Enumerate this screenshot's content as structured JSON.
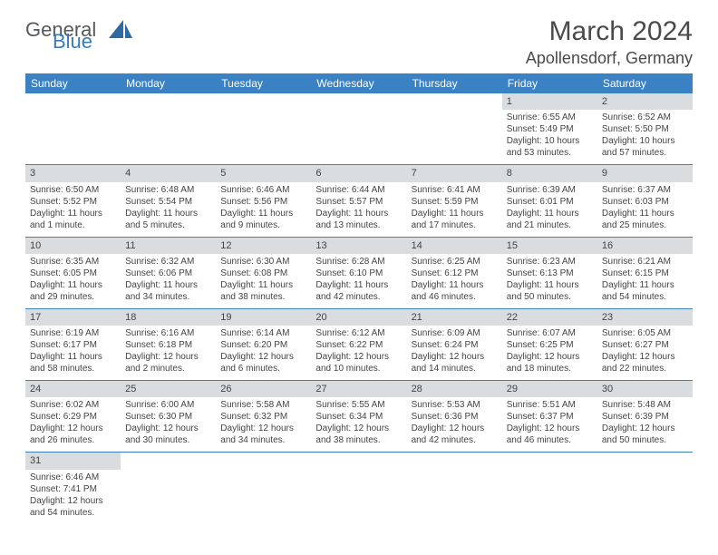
{
  "logo": {
    "general": "General",
    "blue": "Blue"
  },
  "title": "March 2024",
  "location": "Apollensdorf, Germany",
  "day_headers": [
    "Sunday",
    "Monday",
    "Tuesday",
    "Wednesday",
    "Thursday",
    "Friday",
    "Saturday"
  ],
  "colors": {
    "header_bg": "#3b82c4",
    "daynum_bg": "#d9dde0",
    "rule": "#3b82c4"
  },
  "weeks": [
    [
      {
        "n": "",
        "sunrise": "",
        "sunset": "",
        "daylight": ""
      },
      {
        "n": "",
        "sunrise": "",
        "sunset": "",
        "daylight": ""
      },
      {
        "n": "",
        "sunrise": "",
        "sunset": "",
        "daylight": ""
      },
      {
        "n": "",
        "sunrise": "",
        "sunset": "",
        "daylight": ""
      },
      {
        "n": "",
        "sunrise": "",
        "sunset": "",
        "daylight": ""
      },
      {
        "n": "1",
        "sunrise": "Sunrise: 6:55 AM",
        "sunset": "Sunset: 5:49 PM",
        "daylight": "Daylight: 10 hours and 53 minutes."
      },
      {
        "n": "2",
        "sunrise": "Sunrise: 6:52 AM",
        "sunset": "Sunset: 5:50 PM",
        "daylight": "Daylight: 10 hours and 57 minutes."
      }
    ],
    [
      {
        "n": "3",
        "sunrise": "Sunrise: 6:50 AM",
        "sunset": "Sunset: 5:52 PM",
        "daylight": "Daylight: 11 hours and 1 minute."
      },
      {
        "n": "4",
        "sunrise": "Sunrise: 6:48 AM",
        "sunset": "Sunset: 5:54 PM",
        "daylight": "Daylight: 11 hours and 5 minutes."
      },
      {
        "n": "5",
        "sunrise": "Sunrise: 6:46 AM",
        "sunset": "Sunset: 5:56 PM",
        "daylight": "Daylight: 11 hours and 9 minutes."
      },
      {
        "n": "6",
        "sunrise": "Sunrise: 6:44 AM",
        "sunset": "Sunset: 5:57 PM",
        "daylight": "Daylight: 11 hours and 13 minutes."
      },
      {
        "n": "7",
        "sunrise": "Sunrise: 6:41 AM",
        "sunset": "Sunset: 5:59 PM",
        "daylight": "Daylight: 11 hours and 17 minutes."
      },
      {
        "n": "8",
        "sunrise": "Sunrise: 6:39 AM",
        "sunset": "Sunset: 6:01 PM",
        "daylight": "Daylight: 11 hours and 21 minutes."
      },
      {
        "n": "9",
        "sunrise": "Sunrise: 6:37 AM",
        "sunset": "Sunset: 6:03 PM",
        "daylight": "Daylight: 11 hours and 25 minutes."
      }
    ],
    [
      {
        "n": "10",
        "sunrise": "Sunrise: 6:35 AM",
        "sunset": "Sunset: 6:05 PM",
        "daylight": "Daylight: 11 hours and 29 minutes."
      },
      {
        "n": "11",
        "sunrise": "Sunrise: 6:32 AM",
        "sunset": "Sunset: 6:06 PM",
        "daylight": "Daylight: 11 hours and 34 minutes."
      },
      {
        "n": "12",
        "sunrise": "Sunrise: 6:30 AM",
        "sunset": "Sunset: 6:08 PM",
        "daylight": "Daylight: 11 hours and 38 minutes."
      },
      {
        "n": "13",
        "sunrise": "Sunrise: 6:28 AM",
        "sunset": "Sunset: 6:10 PM",
        "daylight": "Daylight: 11 hours and 42 minutes."
      },
      {
        "n": "14",
        "sunrise": "Sunrise: 6:25 AM",
        "sunset": "Sunset: 6:12 PM",
        "daylight": "Daylight: 11 hours and 46 minutes."
      },
      {
        "n": "15",
        "sunrise": "Sunrise: 6:23 AM",
        "sunset": "Sunset: 6:13 PM",
        "daylight": "Daylight: 11 hours and 50 minutes."
      },
      {
        "n": "16",
        "sunrise": "Sunrise: 6:21 AM",
        "sunset": "Sunset: 6:15 PM",
        "daylight": "Daylight: 11 hours and 54 minutes."
      }
    ],
    [
      {
        "n": "17",
        "sunrise": "Sunrise: 6:19 AM",
        "sunset": "Sunset: 6:17 PM",
        "daylight": "Daylight: 11 hours and 58 minutes."
      },
      {
        "n": "18",
        "sunrise": "Sunrise: 6:16 AM",
        "sunset": "Sunset: 6:18 PM",
        "daylight": "Daylight: 12 hours and 2 minutes."
      },
      {
        "n": "19",
        "sunrise": "Sunrise: 6:14 AM",
        "sunset": "Sunset: 6:20 PM",
        "daylight": "Daylight: 12 hours and 6 minutes."
      },
      {
        "n": "20",
        "sunrise": "Sunrise: 6:12 AM",
        "sunset": "Sunset: 6:22 PM",
        "daylight": "Daylight: 12 hours and 10 minutes."
      },
      {
        "n": "21",
        "sunrise": "Sunrise: 6:09 AM",
        "sunset": "Sunset: 6:24 PM",
        "daylight": "Daylight: 12 hours and 14 minutes."
      },
      {
        "n": "22",
        "sunrise": "Sunrise: 6:07 AM",
        "sunset": "Sunset: 6:25 PM",
        "daylight": "Daylight: 12 hours and 18 minutes."
      },
      {
        "n": "23",
        "sunrise": "Sunrise: 6:05 AM",
        "sunset": "Sunset: 6:27 PM",
        "daylight": "Daylight: 12 hours and 22 minutes."
      }
    ],
    [
      {
        "n": "24",
        "sunrise": "Sunrise: 6:02 AM",
        "sunset": "Sunset: 6:29 PM",
        "daylight": "Daylight: 12 hours and 26 minutes."
      },
      {
        "n": "25",
        "sunrise": "Sunrise: 6:00 AM",
        "sunset": "Sunset: 6:30 PM",
        "daylight": "Daylight: 12 hours and 30 minutes."
      },
      {
        "n": "26",
        "sunrise": "Sunrise: 5:58 AM",
        "sunset": "Sunset: 6:32 PM",
        "daylight": "Daylight: 12 hours and 34 minutes."
      },
      {
        "n": "27",
        "sunrise": "Sunrise: 5:55 AM",
        "sunset": "Sunset: 6:34 PM",
        "daylight": "Daylight: 12 hours and 38 minutes."
      },
      {
        "n": "28",
        "sunrise": "Sunrise: 5:53 AM",
        "sunset": "Sunset: 6:36 PM",
        "daylight": "Daylight: 12 hours and 42 minutes."
      },
      {
        "n": "29",
        "sunrise": "Sunrise: 5:51 AM",
        "sunset": "Sunset: 6:37 PM",
        "daylight": "Daylight: 12 hours and 46 minutes."
      },
      {
        "n": "30",
        "sunrise": "Sunrise: 5:48 AM",
        "sunset": "Sunset: 6:39 PM",
        "daylight": "Daylight: 12 hours and 50 minutes."
      }
    ],
    [
      {
        "n": "31",
        "sunrise": "Sunrise: 6:46 AM",
        "sunset": "Sunset: 7:41 PM",
        "daylight": "Daylight: 12 hours and 54 minutes."
      },
      {
        "n": "",
        "sunrise": "",
        "sunset": "",
        "daylight": ""
      },
      {
        "n": "",
        "sunrise": "",
        "sunset": "",
        "daylight": ""
      },
      {
        "n": "",
        "sunrise": "",
        "sunset": "",
        "daylight": ""
      },
      {
        "n": "",
        "sunrise": "",
        "sunset": "",
        "daylight": ""
      },
      {
        "n": "",
        "sunrise": "",
        "sunset": "",
        "daylight": ""
      },
      {
        "n": "",
        "sunrise": "",
        "sunset": "",
        "daylight": ""
      }
    ]
  ]
}
